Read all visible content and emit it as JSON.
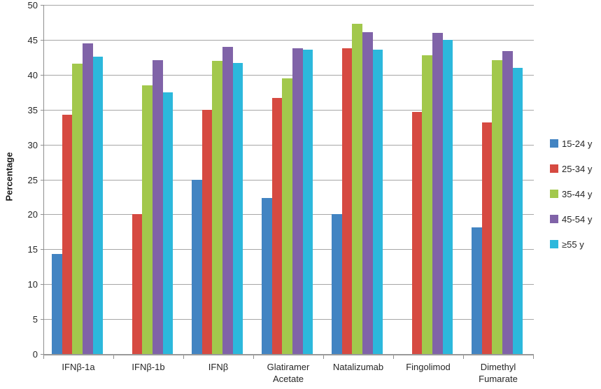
{
  "chart_data": {
    "type": "bar",
    "title": "",
    "xlabel": "",
    "ylabel": "Percentage",
    "ylim": [
      0,
      50
    ],
    "ytick_step": 5,
    "grid": true,
    "legend_position": "right",
    "categories": [
      "IFNβ-1a",
      "IFNβ-1b",
      "IFNβ",
      "Glatiramer Acetate",
      "Natalizumab",
      "Fingolimod",
      "Dimethyl Fumarate"
    ],
    "series": [
      {
        "name": "15-24 y",
        "color": "#4284C2",
        "values": [
          14.3,
          null,
          25.0,
          22.3,
          20.0,
          null,
          18.1
        ]
      },
      {
        "name": "25-34 y",
        "color": "#D64A41",
        "values": [
          34.3,
          20.0,
          35.0,
          36.7,
          43.8,
          34.7,
          33.2
        ]
      },
      {
        "name": "35-44 y",
        "color": "#A2C84C",
        "values": [
          41.6,
          38.5,
          42.0,
          39.5,
          47.3,
          42.8,
          42.1
        ]
      },
      {
        "name": "45-54 y",
        "color": "#8063A8",
        "values": [
          44.5,
          42.1,
          44.0,
          43.8,
          46.1,
          46.0,
          43.4
        ]
      },
      {
        "name": "≥55 y",
        "color": "#2CB8DC",
        "values": [
          42.6,
          37.5,
          41.7,
          43.6,
          43.6,
          45.0,
          41.0
        ]
      }
    ],
    "axis_colors": {
      "gridline": "#a6a6a6",
      "axis": "#8e8e8e",
      "text": "#262626"
    }
  }
}
